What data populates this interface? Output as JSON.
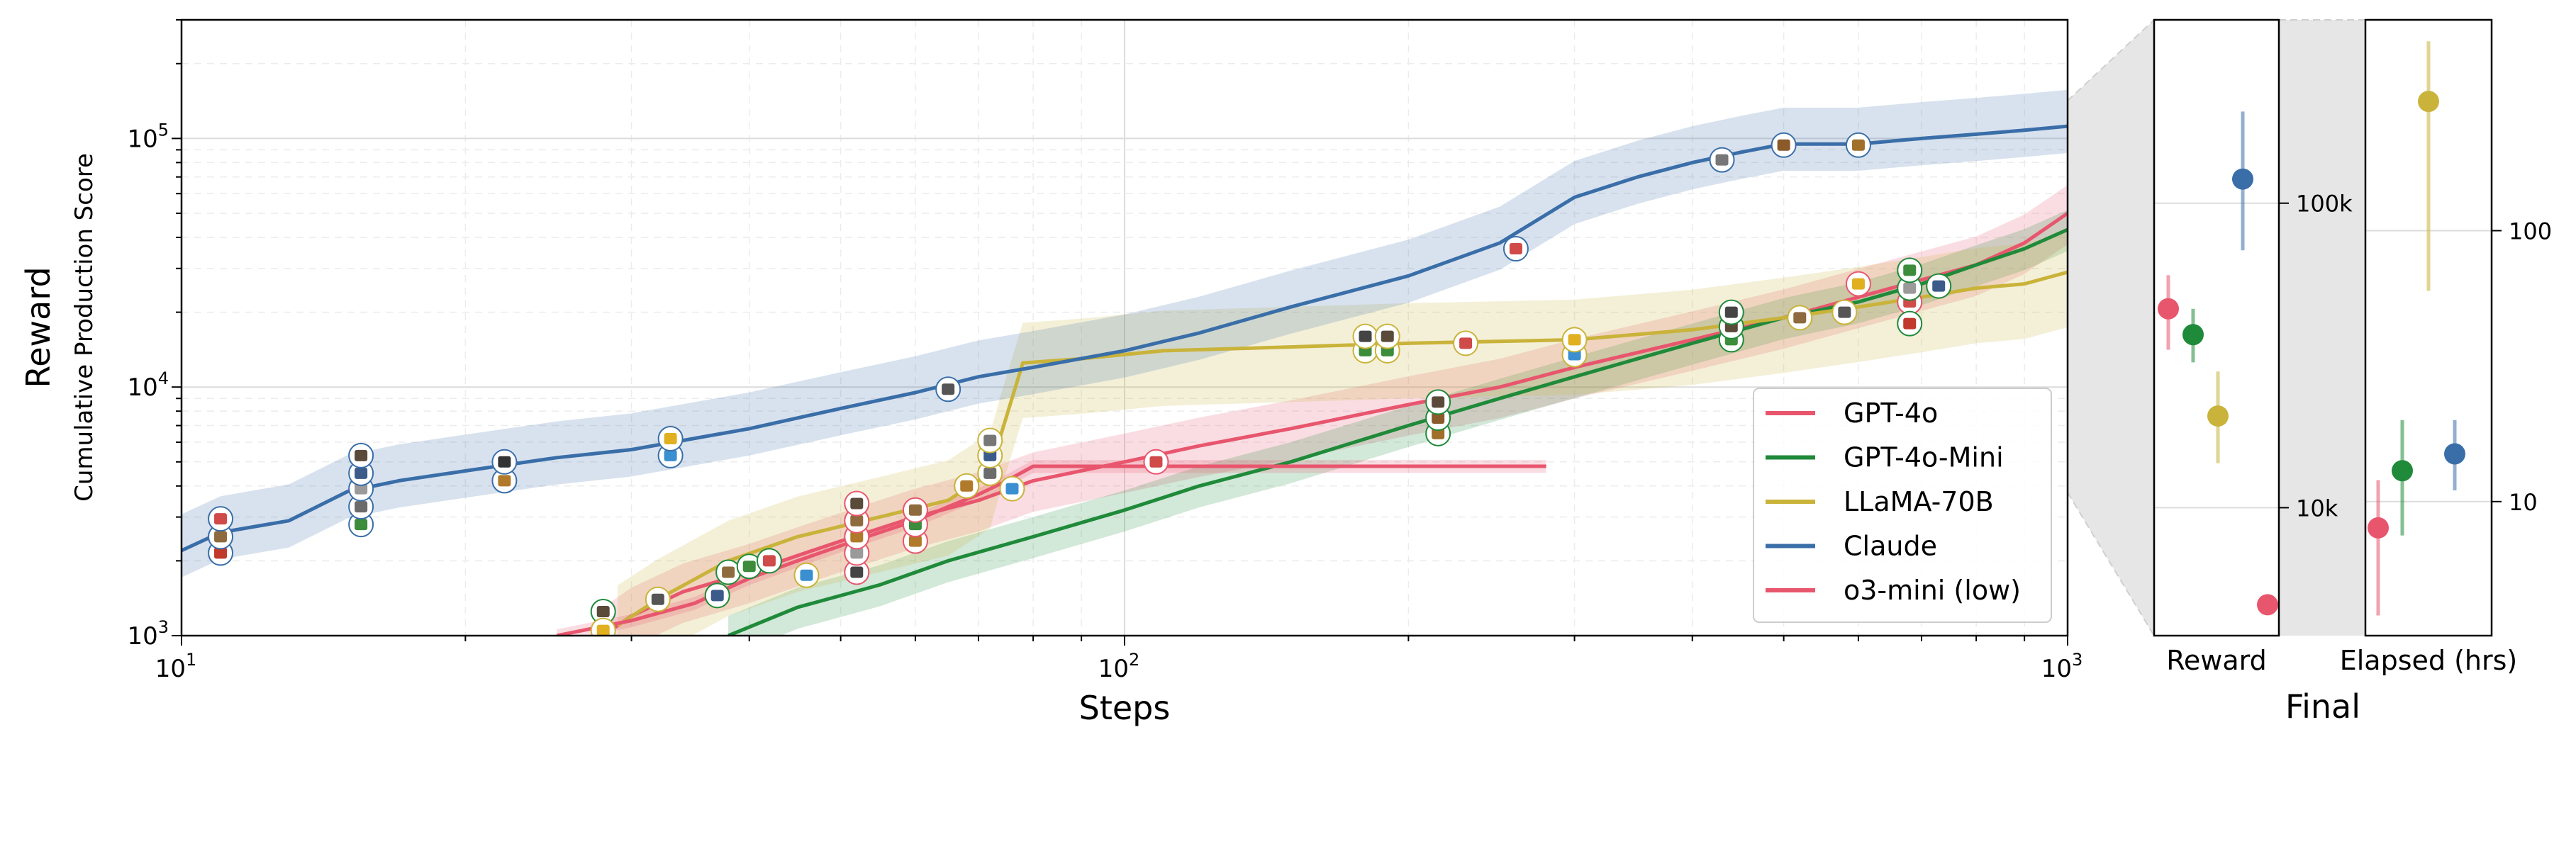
{
  "main_chart": {
    "xlabel": "Steps",
    "ylabel": "Reward",
    "ylabel_sub": "Cumulative Production Score",
    "x_ticks": [
      "10^1",
      "10^2",
      "10^3"
    ],
    "y_ticks": [
      "10^3",
      "10^4",
      "10^5"
    ]
  },
  "final_panel": {
    "title": "Final",
    "reward_label": "Reward",
    "elapsed_label": "Elapsed (hrs)",
    "reward_ticks": [
      "10k",
      "100k"
    ],
    "elapsed_ticks": [
      "10",
      "100"
    ]
  },
  "legend": [
    "GPT-4o",
    "GPT-4o-Mini",
    "LLaMA-70B",
    "Claude",
    "o3-mini (low)"
  ],
  "chart_data": [
    {
      "type": "line",
      "xscale": "log",
      "yscale": "log",
      "xlim": [
        10,
        1000
      ],
      "ylim": [
        1000,
        300000
      ],
      "xlabel": "Steps",
      "ylabel": "Reward",
      "grid": true,
      "legend_position": "lower-right",
      "series": [
        {
          "name": "GPT-4o",
          "color": "#e8566e",
          "x": [
            28,
            30,
            34,
            40,
            45,
            50,
            55,
            60,
            70,
            80,
            100,
            120,
            150,
            200,
            250,
            300,
            400,
            500,
            600,
            700,
            800,
            900,
            1000
          ],
          "y": [
            1000,
            1200,
            1500,
            1800,
            2100,
            2400,
            2700,
            3000,
            3500,
            4200,
            5000,
            5800,
            6800,
            8500,
            10000,
            12000,
            15500,
            19000,
            23000,
            27000,
            31000,
            38000,
            50000
          ],
          "band": [
            0.75,
            1.3
          ]
        },
        {
          "name": "GPT-4o-Mini",
          "color": "#1f8a3a",
          "x": [
            38,
            45,
            55,
            65,
            80,
            100,
            120,
            150,
            200,
            250,
            300,
            350,
            400,
            450,
            500,
            600,
            700,
            800,
            900,
            1000
          ],
          "y": [
            1000,
            1300,
            1600,
            2000,
            2500,
            3200,
            4000,
            5000,
            7000,
            9000,
            11000,
            13000,
            15000,
            17000,
            19000,
            22000,
            26000,
            31000,
            36000,
            43000
          ],
          "band": [
            0.82,
            1.2
          ]
        },
        {
          "name": "LLaMA-70B",
          "color": "#c9b33a",
          "x": [
            29,
            32,
            38,
            45,
            55,
            65,
            72,
            74,
            78,
            90,
            110,
            150,
            200,
            300,
            400,
            500,
            600,
            700,
            800,
            900,
            1000
          ],
          "y": [
            1100,
            1400,
            2000,
            2500,
            3000,
            3500,
            4500,
            6500,
            12500,
            13000,
            14000,
            14500,
            15000,
            15500,
            17000,
            19000,
            21000,
            23000,
            25000,
            26000,
            29000
          ],
          "band": [
            0.6,
            1.45
          ]
        },
        {
          "name": "Claude",
          "color": "#3a6ea8",
          "x": [
            10,
            11,
            13,
            15,
            17,
            20,
            25,
            30,
            40,
            50,
            60,
            70,
            80,
            100,
            120,
            150,
            200,
            250,
            300,
            350,
            400,
            450,
            500,
            600,
            700,
            800,
            900,
            1000
          ],
          "y": [
            2200,
            2600,
            2900,
            3800,
            4200,
            4600,
            5200,
            5600,
            6800,
            8200,
            9500,
            11000,
            12000,
            14000,
            16500,
            21000,
            28000,
            38000,
            58000,
            70000,
            80000,
            88000,
            95000,
            95000,
            100000,
            104000,
            108000,
            112000
          ],
          "band": [
            0.78,
            1.4
          ]
        },
        {
          "name": "o3-mini (low)",
          "color": "#e8566e",
          "x": [
            25,
            30,
            35,
            40,
            45,
            50,
            55,
            60,
            65,
            70,
            75,
            80,
            280
          ],
          "y": [
            1000,
            1150,
            1350,
            1700,
            2000,
            2300,
            2600,
            2900,
            3300,
            3700,
            4200,
            4800,
            4800
          ],
          "band": [
            0.94,
            1.06
          ]
        }
      ]
    },
    {
      "type": "scatter",
      "title": "Reward",
      "yscale": "log",
      "ylim": [
        3800,
        400000
      ],
      "categories": [
        "GPT-4o",
        "GPT-4o-Mini",
        "LLaMA-70B",
        "Claude",
        "o3-mini (low)"
      ],
      "values": [
        45000,
        37000,
        20000,
        120000,
        4800
      ],
      "err_low": [
        33000,
        30000,
        14000,
        70000,
        4800
      ],
      "err_high": [
        58000,
        45000,
        28000,
        200000,
        4800
      ]
    },
    {
      "type": "scatter",
      "title": "Elapsed (hrs)",
      "yscale": "log",
      "ylim": [
        3.2,
        600
      ],
      "categories": [
        "GPT-4o",
        "GPT-4o-Mini",
        "LLaMA-70B",
        "Claude"
      ],
      "values": [
        8,
        13,
        300,
        15
      ],
      "err_low": [
        3.8,
        7.5,
        60,
        11
      ],
      "err_high": [
        12,
        20,
        500,
        20
      ]
    }
  ],
  "markers": [
    {
      "series": "Claude",
      "x": 11,
      "y": 2150,
      "icon": "drill"
    },
    {
      "series": "Claude",
      "x": 11,
      "y": 2500,
      "icon": "gear"
    },
    {
      "series": "Claude",
      "x": 11,
      "y": 2950,
      "icon": "flask"
    },
    {
      "series": "Claude",
      "x": 15.5,
      "y": 2800,
      "icon": "circuit"
    },
    {
      "series": "Claude",
      "x": 15.5,
      "y": 3300,
      "icon": "belt"
    },
    {
      "series": "Claude",
      "x": 15.5,
      "y": 3900,
      "icon": "plate"
    },
    {
      "series": "Claude",
      "x": 15.5,
      "y": 4500,
      "icon": "ore"
    },
    {
      "series": "Claude",
      "x": 15.5,
      "y": 5300,
      "icon": "furnace"
    },
    {
      "series": "Claude",
      "x": 22,
      "y": 4200,
      "icon": "inserter"
    },
    {
      "series": "Claude",
      "x": 22,
      "y": 5000,
      "icon": "coal"
    },
    {
      "series": "Claude",
      "x": 33,
      "y": 5300,
      "icon": "water"
    },
    {
      "series": "Claude",
      "x": 33,
      "y": 6200,
      "icon": "bolt"
    },
    {
      "series": "Claude",
      "x": 65,
      "y": 9800,
      "icon": "wrench"
    },
    {
      "series": "Claude",
      "x": 260,
      "y": 36000,
      "icon": "flask"
    },
    {
      "series": "Claude",
      "x": 430,
      "y": 82000,
      "icon": "pipe"
    },
    {
      "series": "Claude",
      "x": 500,
      "y": 94000,
      "icon": "chest"
    },
    {
      "series": "Claude",
      "x": 600,
      "y": 94000,
      "icon": "box"
    },
    {
      "series": "GPT-4o",
      "x": 108,
      "y": 5000,
      "icon": "flask"
    },
    {
      "series": "GPT-4o",
      "x": 52,
      "y": 1800,
      "icon": "robot"
    },
    {
      "series": "GPT-4o",
      "x": 52,
      "y": 2150,
      "icon": "plate"
    },
    {
      "series": "GPT-4o",
      "x": 52,
      "y": 2500,
      "icon": "inserter"
    },
    {
      "series": "GPT-4o",
      "x": 52,
      "y": 2900,
      "icon": "gear"
    },
    {
      "series": "GPT-4o",
      "x": 52,
      "y": 3400,
      "icon": "furnace"
    },
    {
      "series": "GPT-4o",
      "x": 60,
      "y": 2400,
      "icon": "inserter"
    },
    {
      "series": "GPT-4o",
      "x": 60,
      "y": 2800,
      "icon": "circuit"
    },
    {
      "series": "GPT-4o",
      "x": 60,
      "y": 3200,
      "icon": "gear"
    },
    {
      "series": "GPT-4o",
      "x": 600,
      "y": 26000,
      "icon": "bolt"
    },
    {
      "series": "GPT-4o",
      "x": 680,
      "y": 22000,
      "icon": "flask"
    },
    {
      "series": "GPT-4o-Mini",
      "x": 28,
      "y": 1250,
      "icon": "furnace"
    },
    {
      "series": "GPT-4o-Mini",
      "x": 37,
      "y": 1450,
      "icon": "ore"
    },
    {
      "series": "GPT-4o-Mini",
      "x": 38,
      "y": 1800,
      "icon": "gear"
    },
    {
      "series": "GPT-4o-Mini",
      "x": 40,
      "y": 1900,
      "icon": "circuit"
    },
    {
      "series": "GPT-4o-Mini",
      "x": 42,
      "y": 2000,
      "icon": "flask"
    },
    {
      "series": "GPT-4o-Mini",
      "x": 215,
      "y": 6500,
      "icon": "box"
    },
    {
      "series": "GPT-4o-Mini",
      "x": 215,
      "y": 7500,
      "icon": "chest"
    },
    {
      "series": "GPT-4o-Mini",
      "x": 215,
      "y": 8700,
      "icon": "furnace"
    },
    {
      "series": "GPT-4o-Mini",
      "x": 440,
      "y": 15500,
      "icon": "circuit"
    },
    {
      "series": "GPT-4o-Mini",
      "x": 440,
      "y": 17500,
      "icon": "furnace"
    },
    {
      "series": "GPT-4o-Mini",
      "x": 440,
      "y": 20000,
      "icon": "robot"
    },
    {
      "series": "GPT-4o-Mini",
      "x": 680,
      "y": 18000,
      "icon": "drill"
    },
    {
      "series": "GPT-4o-Mini",
      "x": 680,
      "y": 25000,
      "icon": "plate"
    },
    {
      "series": "GPT-4o-Mini",
      "x": 680,
      "y": 29500,
      "icon": "circuit"
    },
    {
      "series": "GPT-4o-Mini",
      "x": 730,
      "y": 25500,
      "icon": "ore"
    },
    {
      "series": "LLaMA-70B",
      "x": 28,
      "y": 1050,
      "icon": "bolt"
    },
    {
      "series": "LLaMA-70B",
      "x": 32,
      "y": 1400,
      "icon": "wrench"
    },
    {
      "series": "LLaMA-70B",
      "x": 46,
      "y": 1750,
      "icon": "water"
    },
    {
      "series": "LLaMA-70B",
      "x": 68,
      "y": 4000,
      "icon": "inserter"
    },
    {
      "series": "LLaMA-70B",
      "x": 72,
      "y": 4500,
      "icon": "belt"
    },
    {
      "series": "LLaMA-70B",
      "x": 72,
      "y": 5300,
      "icon": "ore"
    },
    {
      "series": "LLaMA-70B",
      "x": 72,
      "y": 6100,
      "icon": "pipe"
    },
    {
      "series": "LLaMA-70B",
      "x": 76,
      "y": 3900,
      "icon": "water"
    },
    {
      "series": "LLaMA-70B",
      "x": 180,
      "y": 14000,
      "icon": "circuit"
    },
    {
      "series": "LLaMA-70B",
      "x": 180,
      "y": 16000,
      "icon": "robot"
    },
    {
      "series": "LLaMA-70B",
      "x": 190,
      "y": 14000,
      "icon": "circuit"
    },
    {
      "series": "LLaMA-70B",
      "x": 190,
      "y": 16000,
      "icon": "furnace"
    },
    {
      "series": "LLaMA-70B",
      "x": 230,
      "y": 15000,
      "icon": "flask"
    },
    {
      "series": "LLaMA-70B",
      "x": 300,
      "y": 13500,
      "icon": "water"
    },
    {
      "series": "LLaMA-70B",
      "x": 300,
      "y": 15500,
      "icon": "bolt"
    },
    {
      "series": "LLaMA-70B",
      "x": 520,
      "y": 19000,
      "icon": "gear"
    },
    {
      "series": "LLaMA-70B",
      "x": 580,
      "y": 20000,
      "icon": "wrench"
    }
  ]
}
